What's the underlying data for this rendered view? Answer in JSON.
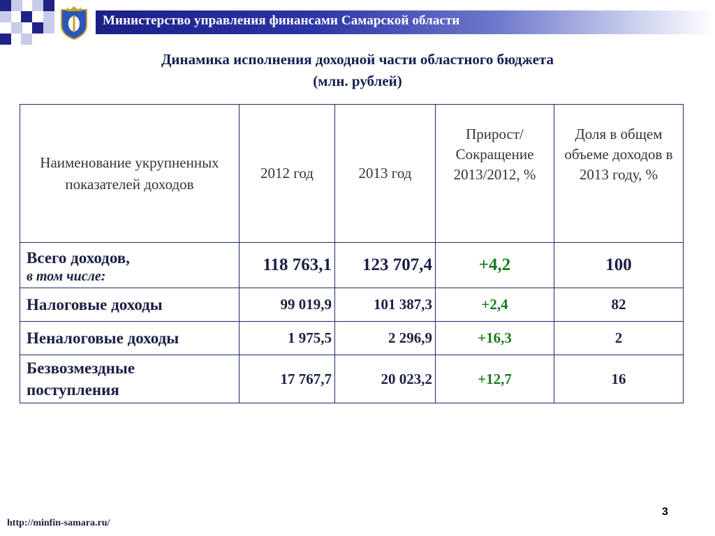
{
  "header": {
    "ministry": "Министерство управления финансами Самарской области"
  },
  "colors": {
    "banner_dark": "#1c1f86",
    "square_blue": "#1f2388",
    "square_light": "#c8cbe9",
    "title": "#141f50",
    "positive": "#1a7a1a"
  },
  "title": {
    "line1": "Динамика исполнения доходной части областного бюджета",
    "line2": "(млн. рублей)"
  },
  "table": {
    "columns": [
      "Наименование укрупненных показателей доходов",
      "2012 год",
      "2013 год",
      "Прирост/ Сокращение 2013/2012, %",
      "Доля в общем объеме доходов в 2013 году, %"
    ],
    "rows": [
      {
        "label": "Всего доходов,",
        "sublabel": "в том числе:",
        "v2012": "118 763,1",
        "v2013": "123 707,4",
        "growth": "+4,2",
        "share": "100"
      },
      {
        "label": "Налоговые доходы",
        "v2012": "99 019,9",
        "v2013": "101 387,3",
        "growth": "+2,4",
        "share": "82"
      },
      {
        "label": "Неналоговые доходы",
        "v2012": "1 975,5",
        "v2013": "2 296,9",
        "growth": "+16,3",
        "share": "2"
      },
      {
        "label": "Безвозмездные поступления",
        "v2012": "17 767,7",
        "v2013": "20 023,2",
        "growth": "+12,7",
        "share": "16"
      }
    ]
  },
  "footer": {
    "url": "http://minfin-samara.ru/",
    "page": "3"
  }
}
